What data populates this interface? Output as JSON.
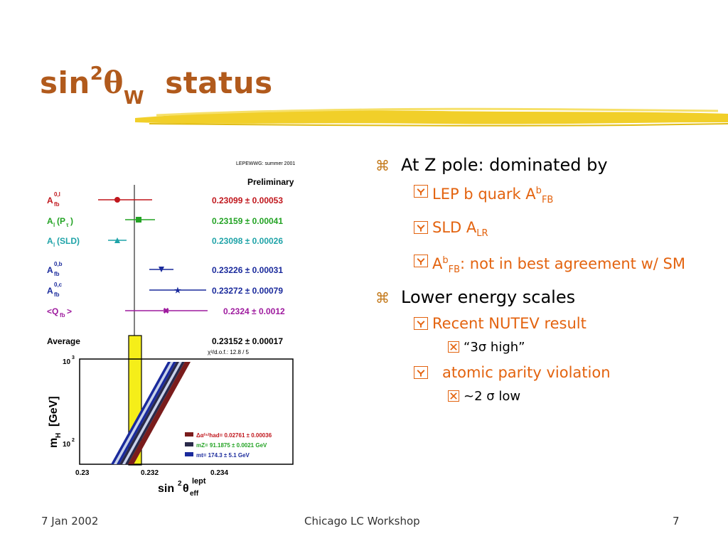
{
  "title": {
    "main": "sin",
    "sup": "2",
    "theta": "θ",
    "sub": "W",
    "rest": "status"
  },
  "plot": {
    "header": "LEPEWWG: summer 2001",
    "prelim": "Preliminary",
    "rows": [
      {
        "label": "A",
        "lsup": "0,l",
        "lsub": "fb",
        "val": "0.23099 ± 0.00053",
        "color": "#c0161c"
      },
      {
        "label": "A",
        "lsub": "l",
        "paren": "(P",
        "psub": "τ",
        "end": ")",
        "val": "0.23159 ± 0.00041",
        "color": "#23a324"
      },
      {
        "label": "A",
        "lsub": "l",
        "paren": "(SLD)",
        "val": "0.23098 ± 0.00026",
        "color": "#1fa3a8"
      },
      {
        "label": "A",
        "lsup": "0,b",
        "lsub": "fb",
        "val": "0.23226 ± 0.00031",
        "color": "#1a2a9c"
      },
      {
        "label": "A",
        "lsup": "0,c",
        "lsub": "fb",
        "val": "0.23272 ± 0.00079",
        "color": "#1a2a9c"
      },
      {
        "label": "<Q",
        "lsub": "fb",
        "end": ">",
        "val": "0.2324 ± 0.0012",
        "color": "#9e1a9e"
      }
    ],
    "average_label": "Average",
    "average_val": "0.23152 ± 0.00017",
    "chi2": "χ²/d.o.f.: 12.8 / 5",
    "ylabel": "m",
    "ylabel_sub": "H",
    "ylabel_unit": "[GeV]",
    "yt_top": "10",
    "yt_top_sup": "3",
    "yt_mid": "10",
    "yt_mid_sup": "2",
    "xticks": [
      "0.23",
      "0.232",
      "0.234"
    ],
    "xlabel": "sin",
    "xlabel_sup": "2",
    "xlabel_theta": "θ",
    "xlabel_sub": "eff",
    "xlabel_sup2": "lept",
    "legend": [
      {
        "text": "Δα⁽⁵⁾had= 0.02761 ± 0.00036",
        "color": "#c0161c"
      },
      {
        "text": "mZ= 91.1875 ± 0.0021 GeV",
        "color": "#23a324"
      },
      {
        "text": "mt= 174.3 ± 5.1 GeV",
        "color": "#1a2a9c"
      }
    ]
  },
  "bullets": {
    "b1": "At Z pole: dominated by",
    "b1a_pre": "LEP b quark A",
    "b1a_sup": "b",
    "b1a_sub": "FB",
    "b1b_pre": "SLD A",
    "b1b_sub": "LR",
    "b1c_pre": "A",
    "b1c_sup": "b",
    "b1c_sub": "FB",
    "b1c_post": ": not in best agreement w/ SM",
    "b2": "Lower energy scales",
    "b2a": "Recent NUTEV result",
    "b2a1": "“3σ high”",
    "b2b": "atomic parity violation",
    "b2b1": "~2 σ low"
  },
  "footer": {
    "date": "7 Jan 2002",
    "center": "Chicago LC Workshop",
    "page": "7"
  }
}
